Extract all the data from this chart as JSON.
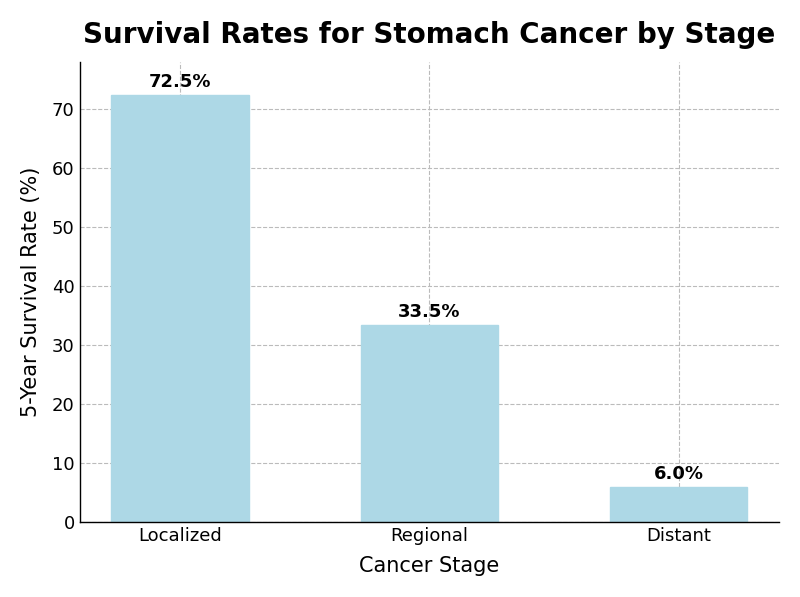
{
  "categories": [
    "Localized",
    "Regional",
    "Distant"
  ],
  "values": [
    72.5,
    33.5,
    6.0
  ],
  "bar_color": "#ADD8E6",
  "bar_edgecolor": "#ADD8E6",
  "title": "Survival Rates for Stomach Cancer by Stage",
  "xlabel": "Cancer Stage",
  "ylabel": "5-Year Survival Rate (%)",
  "ylim": [
    0,
    78
  ],
  "yticks": [
    0,
    10,
    20,
    30,
    40,
    50,
    60,
    70
  ],
  "title_fontsize": 20,
  "label_fontsize": 15,
  "tick_fontsize": 13,
  "annotation_fontsize": 13,
  "background_color": "#ffffff",
  "grid_color": "#bbbbbb",
  "bar_width": 0.55
}
